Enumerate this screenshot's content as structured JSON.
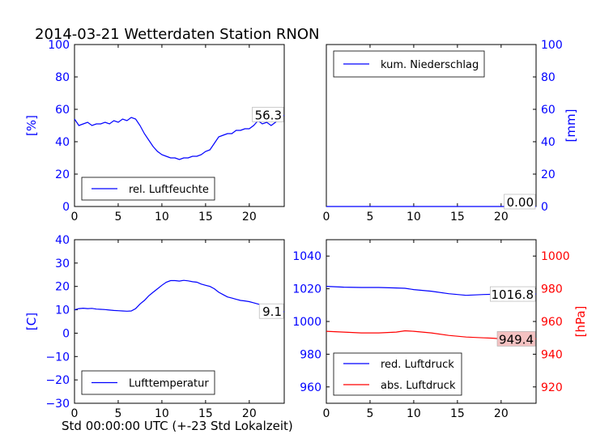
{
  "title": "2014-03-21 Wetterdaten Station RNON",
  "colors": {
    "blue": "#0000ff",
    "red": "#ff0000",
    "axis": "#000000",
    "highlight_fill": "#ffffff",
    "highlight_fill_red": "#f4c2c2"
  },
  "chart_data": [
    {
      "id": "humidity",
      "type": "line",
      "ylabel": "[%]",
      "ylim": [
        0,
        100
      ],
      "yticks": [
        0,
        20,
        40,
        60,
        80,
        100
      ],
      "xlim": [
        0,
        24
      ],
      "xticks": [
        0,
        5,
        10,
        15,
        20
      ],
      "grid": false,
      "legend_position": "lower-left",
      "series": [
        {
          "name": "rel. Luftfeuchte",
          "color": "#0000ff",
          "x": [
            0,
            0.5,
            1,
            1.5,
            2,
            2.5,
            3,
            3.5,
            4,
            4.5,
            5,
            5.5,
            6,
            6.5,
            7,
            7.5,
            8,
            8.5,
            9,
            9.5,
            10,
            10.5,
            11,
            11.5,
            12,
            12.5,
            13,
            13.5,
            14,
            14.5,
            15,
            15.5,
            16,
            16.5,
            17,
            17.5,
            18,
            18.5,
            19,
            19.5,
            20,
            20.5,
            21,
            21.5,
            22,
            22.5,
            23,
            23.5,
            24
          ],
          "values": [
            54,
            50,
            51,
            52,
            50,
            51,
            51,
            52,
            51,
            53,
            52,
            54,
            53,
            55,
            54,
            50,
            45,
            41,
            37,
            34,
            32,
            31,
            30,
            30,
            29,
            30,
            30,
            31,
            31,
            32,
            34,
            35,
            39,
            43,
            44,
            45,
            45,
            47,
            47,
            48,
            48,
            50,
            53,
            51,
            52,
            50,
            52,
            55,
            56.3
          ]
        }
      ],
      "annotation": "56.3"
    },
    {
      "id": "precipitation",
      "type": "line",
      "ylabel": "[mm]",
      "ylim": [
        0,
        100
      ],
      "yticks": [
        0,
        20,
        40,
        60,
        80,
        100
      ],
      "xlim": [
        0,
        24
      ],
      "xticks": [
        0,
        5,
        10,
        15,
        20
      ],
      "grid": false,
      "legend_position": "top-left",
      "series": [
        {
          "name": "kum. Niederschlag",
          "color": "#0000ff",
          "x": [
            0,
            24
          ],
          "values": [
            0,
            0
          ]
        }
      ],
      "annotation": "0.00"
    },
    {
      "id": "temperature",
      "type": "line",
      "ylabel": "[C]",
      "xlabel": "Std 00:00:00 UTC (+-23 Std Lokalzeit)",
      "ylim": [
        -30,
        40
      ],
      "yticks": [
        -30,
        -20,
        -10,
        0,
        10,
        20,
        30,
        40
      ],
      "xlim": [
        0,
        24
      ],
      "xticks": [
        0,
        5,
        10,
        15,
        20
      ],
      "grid": false,
      "legend_position": "lower-left",
      "series": [
        {
          "name": "Lufttemperatur",
          "color": "#0000ff",
          "x": [
            0,
            0.5,
            1,
            1.5,
            2,
            2.5,
            3,
            3.5,
            4,
            4.5,
            5,
            5.5,
            6,
            6.5,
            7,
            7.5,
            8,
            8.5,
            9,
            9.5,
            10,
            10.5,
            11,
            11.5,
            12,
            12.5,
            13,
            13.5,
            14,
            14.5,
            15,
            15.5,
            16,
            16.5,
            17,
            17.5,
            18,
            18.5,
            19,
            19.5,
            20,
            20.5,
            21,
            21.5,
            22,
            22.5,
            23,
            23.5,
            24
          ],
          "values": [
            10,
            10.5,
            10.7,
            10.5,
            10.6,
            10.3,
            10.2,
            10.1,
            9.9,
            9.7,
            9.6,
            9.5,
            9.4,
            9.5,
            10.5,
            12.5,
            14,
            16,
            17.5,
            19,
            20.5,
            21.8,
            22.5,
            22.5,
            22.3,
            22.6,
            22.4,
            22,
            21.8,
            21,
            20.5,
            20,
            19,
            17.5,
            16.5,
            15.5,
            15,
            14.5,
            14,
            13.8,
            13.5,
            13,
            12.5,
            12,
            11.5,
            11,
            10.5,
            9.8,
            9.1
          ]
        }
      ],
      "annotation": "9.1"
    },
    {
      "id": "pressure",
      "type": "line",
      "ylim_left": [
        950,
        1050
      ],
      "yticks_left": [
        960,
        980,
        1000,
        1020,
        1040
      ],
      "ylim_right": [
        910,
        1010
      ],
      "yticks_right": [
        920,
        940,
        960,
        980,
        1000
      ],
      "ylabel_right": "[hPa]",
      "xlim": [
        0,
        24
      ],
      "xticks": [
        0,
        5,
        10,
        15,
        20
      ],
      "grid": false,
      "legend_position": "lower-left",
      "series": [
        {
          "name": "red. Luftdruck",
          "axis": "left",
          "color": "#0000ff",
          "x": [
            0,
            2,
            4,
            6,
            8,
            9,
            10,
            12,
            14,
            16,
            18,
            20,
            22,
            24
          ],
          "values": [
            1021.5,
            1021,
            1020.8,
            1020.8,
            1020.5,
            1020.3,
            1019.5,
            1018.5,
            1017,
            1016,
            1016.5,
            1016.8,
            1016.8,
            1016.8
          ]
        },
        {
          "name": "abs. Luftdruck",
          "axis": "right",
          "color": "#ff0000",
          "x": [
            0,
            2,
            4,
            6,
            8,
            9,
            10,
            12,
            14,
            16,
            18,
            19,
            20,
            22,
            24
          ],
          "values": [
            954,
            953.5,
            953,
            953,
            953.5,
            954.3,
            954,
            953,
            951.5,
            950.5,
            950,
            949.8,
            949.4,
            949.4,
            949.4
          ]
        }
      ],
      "annotation_left": "1016.8",
      "annotation_right": "949.4"
    }
  ]
}
